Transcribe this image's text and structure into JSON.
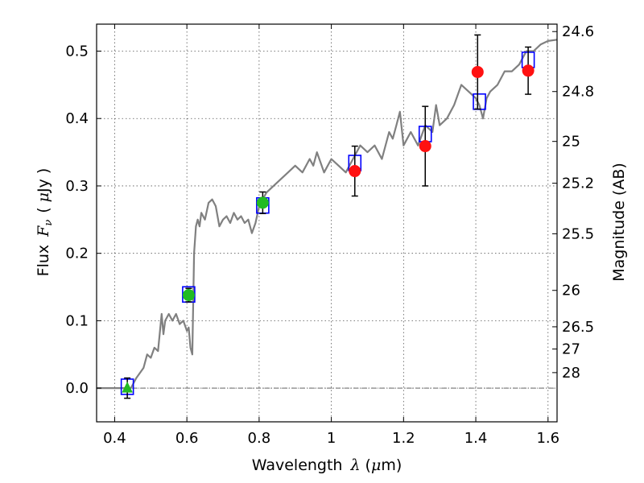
{
  "chart_data": {
    "type": "scatter",
    "title": "",
    "xlabel": "Wavelength",
    "xlabel_math": "λ",
    "xlabel_unit_prefix": "(",
    "xlabel_unit_mu": "μ",
    "xlabel_unit_rest": "m)",
    "ylabel": "Flux",
    "ylabel_math_F": "F",
    "ylabel_math_nu": "ν",
    "ylabel_unit_prefix": "(",
    "ylabel_unit_mu": "μ",
    "ylabel_unit_rest": "Jy )",
    "y2label": "Magnitude (AB)",
    "xlim": [
      0.35,
      1.625
    ],
    "ylim": [
      -0.05,
      0.54
    ],
    "grid": true,
    "x_ticks": [
      0.4,
      0.6,
      0.8,
      1.0,
      1.2,
      1.4,
      1.6
    ],
    "x_tick_labels": [
      "0.4",
      "0.6",
      "0.8",
      "1",
      "1.2",
      "1.4",
      "1.6"
    ],
    "y_ticks": [
      0.0,
      0.1,
      0.2,
      0.3,
      0.4,
      0.5
    ],
    "y_tick_labels": [
      "0.0",
      "0.1",
      "0.2",
      "0.3",
      "0.4",
      "0.5"
    ],
    "y2_ticks": [
      {
        "label": "24.6",
        "flux": 0.529
      },
      {
        "label": "24.8",
        "flux": 0.44
      },
      {
        "label": "25",
        "flux": 0.366
      },
      {
        "label": "25.2",
        "flux": 0.304
      },
      {
        "label": "25.5",
        "flux": 0.229
      },
      {
        "label": "26",
        "flux": 0.145
      },
      {
        "label": "26.5",
        "flux": 0.091
      },
      {
        "label": "27",
        "flux": 0.058
      },
      {
        "label": "28",
        "flux": 0.023
      }
    ],
    "zero_line": 0.0,
    "colors": {
      "model": "#808080",
      "synthetic": "#0000ff",
      "observed_optical": "#22bb22",
      "observed_ir": "#ff1111",
      "errorbar": "#000000",
      "grid": "#555555",
      "zero_line": "#666666"
    },
    "model_spectrum": {
      "x": [
        0.35,
        0.43,
        0.445,
        0.46,
        0.48,
        0.49,
        0.5,
        0.51,
        0.52,
        0.53,
        0.535,
        0.54,
        0.55,
        0.56,
        0.57,
        0.58,
        0.59,
        0.6,
        0.605,
        0.61,
        0.615,
        0.62,
        0.625,
        0.63,
        0.635,
        0.64,
        0.65,
        0.66,
        0.67,
        0.68,
        0.69,
        0.7,
        0.71,
        0.72,
        0.73,
        0.74,
        0.75,
        0.76,
        0.77,
        0.78,
        0.79,
        0.8,
        0.82,
        0.84,
        0.86,
        0.88,
        0.9,
        0.92,
        0.94,
        0.95,
        0.96,
        0.98,
        1.0,
        1.02,
        1.04,
        1.06,
        1.08,
        1.1,
        1.12,
        1.14,
        1.16,
        1.17,
        1.18,
        1.19,
        1.2,
        1.21,
        1.22,
        1.24,
        1.26,
        1.28,
        1.29,
        1.3,
        1.32,
        1.34,
        1.36,
        1.38,
        1.4,
        1.41,
        1.42,
        1.43,
        1.44,
        1.46,
        1.48,
        1.5,
        1.52,
        1.54,
        1.56,
        1.58,
        1.6,
        1.625
      ],
      "y": [
        0.0,
        0.0,
        0.0,
        0.015,
        0.03,
        0.05,
        0.045,
        0.06,
        0.055,
        0.11,
        0.08,
        0.1,
        0.11,
        0.1,
        0.11,
        0.095,
        0.1,
        0.085,
        0.09,
        0.06,
        0.05,
        0.2,
        0.24,
        0.25,
        0.24,
        0.26,
        0.25,
        0.275,
        0.28,
        0.27,
        0.24,
        0.25,
        0.255,
        0.245,
        0.26,
        0.25,
        0.255,
        0.245,
        0.25,
        0.23,
        0.245,
        0.27,
        0.29,
        0.3,
        0.31,
        0.32,
        0.33,
        0.32,
        0.34,
        0.33,
        0.35,
        0.32,
        0.34,
        0.33,
        0.32,
        0.34,
        0.36,
        0.35,
        0.36,
        0.34,
        0.38,
        0.37,
        0.39,
        0.41,
        0.36,
        0.37,
        0.38,
        0.36,
        0.39,
        0.38,
        0.42,
        0.39,
        0.4,
        0.42,
        0.45,
        0.44,
        0.43,
        0.42,
        0.4,
        0.43,
        0.44,
        0.45,
        0.47,
        0.47,
        0.48,
        0.5,
        0.5,
        0.51,
        0.515,
        0.517
      ]
    },
    "synthetic_photometry": {
      "marker": "open square",
      "points": [
        {
          "x": 0.435,
          "y": 0.002
        },
        {
          "x": 0.605,
          "y": 0.139
        },
        {
          "x": 0.81,
          "y": 0.271
        },
        {
          "x": 1.065,
          "y": 0.334
        },
        {
          "x": 1.26,
          "y": 0.377
        },
        {
          "x": 1.41,
          "y": 0.425
        },
        {
          "x": 1.545,
          "y": 0.487
        }
      ]
    },
    "observed_photometry": [
      {
        "x": 0.435,
        "y": 0.0,
        "yerr": 0.015,
        "marker": "triangle",
        "color_key": "observed_optical"
      },
      {
        "x": 0.605,
        "y": 0.138,
        "yerr": 0.01,
        "marker": "circle",
        "color_key": "observed_optical"
      },
      {
        "x": 0.81,
        "y": 0.275,
        "yerr": 0.016,
        "marker": "circle",
        "color_key": "observed_optical"
      },
      {
        "x": 1.065,
        "y": 0.322,
        "yerr": 0.037,
        "marker": "circle",
        "color_key": "observed_ir"
      },
      {
        "x": 1.26,
        "y": 0.359,
        "yerr": 0.059,
        "marker": "circle",
        "color_key": "observed_ir"
      },
      {
        "x": 1.405,
        "y": 0.469,
        "yerr": 0.055,
        "marker": "circle",
        "color_key": "observed_ir"
      },
      {
        "x": 1.545,
        "y": 0.471,
        "yerr": 0.035,
        "marker": "circle",
        "color_key": "observed_ir"
      }
    ]
  }
}
